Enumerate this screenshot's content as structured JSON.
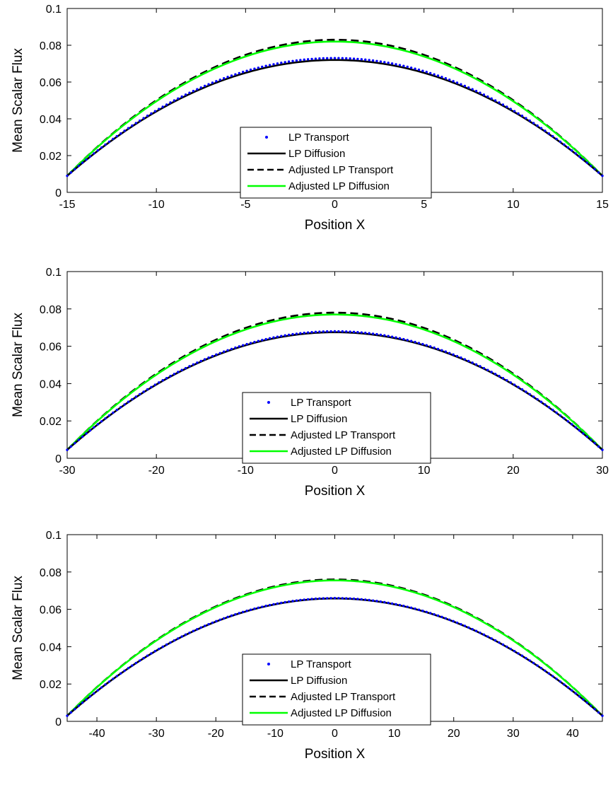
{
  "figure": {
    "background": "#ffffff"
  },
  "styles": {
    "lp_transport": {
      "color": "#0000ff",
      "marker": "dot"
    },
    "lp_diffusion": {
      "color": "#000000",
      "dash": "solid"
    },
    "adj_transport": {
      "color": "#000000",
      "dash": "dashed"
    },
    "adj_diffusion": {
      "color": "#00ff00",
      "dash": "solid"
    }
  },
  "chart_data": [
    {
      "type": "line",
      "xlabel": "Position X",
      "ylabel": "Mean Scalar Flux",
      "xlim": [
        -15,
        15
      ],
      "ylim": [
        0,
        0.1
      ],
      "xticks": [
        "-15",
        "-10",
        "-5",
        "0",
        "5",
        "10",
        "15"
      ],
      "yticks": [
        "0",
        "0.02",
        "0.04",
        "0.06",
        "0.08",
        "0.1"
      ],
      "legend_position": "center-bottom",
      "series": [
        {
          "name": "LP Transport",
          "key": "lp_transport",
          "edge": 0.009,
          "peak": 0.073
        },
        {
          "name": "LP Diffusion",
          "key": "lp_diffusion",
          "edge": 0.009,
          "peak": 0.072
        },
        {
          "name": "Adjusted LP Transport",
          "key": "adj_transport",
          "edge": 0.009,
          "peak": 0.083
        },
        {
          "name": "Adjusted LP Diffusion",
          "key": "adj_diffusion",
          "edge": 0.009,
          "peak": 0.082
        }
      ]
    },
    {
      "type": "line",
      "xlabel": "Position X",
      "ylabel": "Mean Scalar Flux",
      "xlim": [
        -30,
        30
      ],
      "ylim": [
        0,
        0.1
      ],
      "xticks": [
        "-30",
        "-20",
        "-10",
        "0",
        "10",
        "20",
        "30"
      ],
      "yticks": [
        "0",
        "0.02",
        "0.04",
        "0.06",
        "0.08",
        "0.1"
      ],
      "legend_position": "center-bottom",
      "series": [
        {
          "name": "LP Transport",
          "key": "lp_transport",
          "edge": 0.0045,
          "peak": 0.068
        },
        {
          "name": "LP Diffusion",
          "key": "lp_diffusion",
          "edge": 0.0045,
          "peak": 0.0675
        },
        {
          "name": "Adjusted LP Transport",
          "key": "adj_transport",
          "edge": 0.0045,
          "peak": 0.078
        },
        {
          "name": "Adjusted LP Diffusion",
          "key": "adj_diffusion",
          "edge": 0.0045,
          "peak": 0.077
        }
      ]
    },
    {
      "type": "line",
      "xlabel": "Position X",
      "ylabel": "Mean Scalar Flux",
      "xlim": [
        -45,
        45
      ],
      "ylim": [
        0,
        0.1
      ],
      "xticks": [
        "-40",
        "-30",
        "-20",
        "-10",
        "0",
        "10",
        "20",
        "30",
        "40"
      ],
      "yticks": [
        "0",
        "0.02",
        "0.04",
        "0.06",
        "0.08",
        "0.1"
      ],
      "legend_position": "center-bottom",
      "series": [
        {
          "name": "LP Transport",
          "key": "lp_transport",
          "edge": 0.003,
          "peak": 0.066
        },
        {
          "name": "LP Diffusion",
          "key": "lp_diffusion",
          "edge": 0.003,
          "peak": 0.0658
        },
        {
          "name": "Adjusted LP Transport",
          "key": "adj_transport",
          "edge": 0.003,
          "peak": 0.076
        },
        {
          "name": "Adjusted LP Diffusion",
          "key": "adj_diffusion",
          "edge": 0.003,
          "peak": 0.0755
        }
      ]
    }
  ]
}
